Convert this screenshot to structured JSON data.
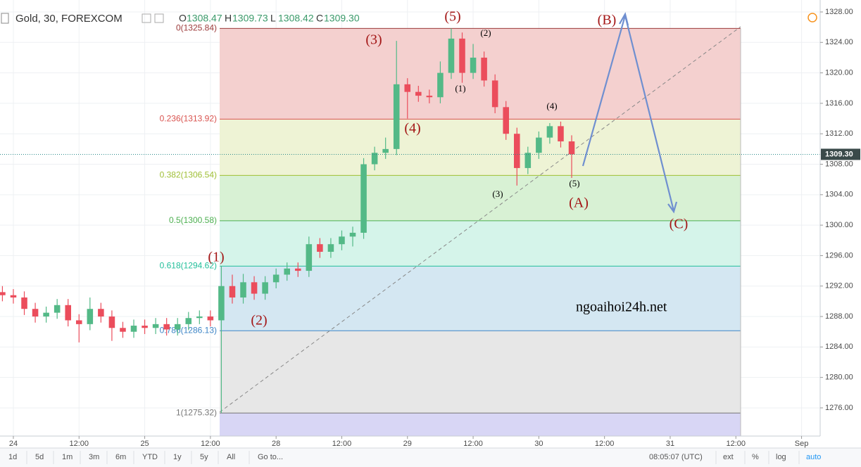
{
  "chart_data": {
    "type": "candlestick",
    "header": {
      "symbol": "Gold, 30, FOREXCOM",
      "ohlc": [
        {
          "key": "O",
          "value": "1308.47"
        },
        {
          "key": "H",
          "value": "1309.73"
        },
        {
          "key": "L",
          "value": "1308.42"
        },
        {
          "key": "C",
          "value": "1309.30"
        }
      ]
    },
    "x": [
      -2,
      0,
      2,
      4,
      6,
      8,
      10,
      12,
      14,
      16,
      18,
      20,
      22,
      24,
      26,
      28,
      30,
      32,
      34,
      36,
      38,
      40,
      42,
      44,
      46,
      48,
      50,
      52,
      54,
      56,
      58,
      60,
      62,
      64,
      66,
      68,
      70,
      72,
      74,
      76,
      78,
      80,
      82,
      84,
      86,
      88,
      90,
      92,
      94,
      96,
      98,
      100,
      102
    ],
    "open": [
      1291.2,
      1290.8,
      1290.5,
      1289,
      1288,
      1288.5,
      1289.5,
      1287.5,
      1287,
      1289,
      1288,
      1286.5,
      1286,
      1286.8,
      1286.5,
      1287,
      1286.3,
      1287,
      1287.8,
      1288,
      1287.5,
      1292,
      1290.5,
      1292.5,
      1291,
      1292.5,
      1293.5,
      1294.3,
      1294,
      1297.5,
      1296.5,
      1297.5,
      1298.5,
      1299,
      1308,
      1309.5,
      1310,
      1318.5,
      1317.5,
      1317,
      1316.8,
      1320,
      1324.5,
      1320,
      1322,
      1319,
      1315.5,
      1312,
      1307.5,
      1309.5,
      1311.5,
      1313,
      1311
    ],
    "high": [
      1292,
      1291.6,
      1291.3,
      1289.8,
      1289.3,
      1290.3,
      1290.3,
      1288.3,
      1290.5,
      1289.8,
      1288.8,
      1287.3,
      1287.6,
      1287.6,
      1287.8,
      1287.8,
      1287.8,
      1288.6,
      1288.8,
      1288.8,
      1294.62,
      1293.5,
      1293.6,
      1293.3,
      1293.3,
      1294.3,
      1295.1,
      1295.1,
      1298.5,
      1298.3,
      1298.3,
      1299.3,
      1299.8,
      1308.8,
      1310.3,
      1311.5,
      1324.2,
      1319.3,
      1318.3,
      1317.8,
      1321.5,
      1325.84,
      1325.3,
      1323.8,
      1322.8,
      1319.8,
      1316.3,
      1312.8,
      1310.3,
      1312.3,
      1313.4,
      1313.6,
      1311.8
    ],
    "low": [
      1290,
      1289.7,
      1288.2,
      1287.2,
      1287.2,
      1287.7,
      1286.7,
      1284.6,
      1286.2,
      1287.2,
      1284.8,
      1285.2,
      1285.2,
      1285.7,
      1285.7,
      1285.5,
      1285.5,
      1286.2,
      1287,
      1286.7,
      1275.32,
      1289.7,
      1289.7,
      1290.2,
      1290.2,
      1291.7,
      1292.7,
      1293.2,
      1293.2,
      1295.7,
      1295.7,
      1296.7,
      1297.2,
      1298.2,
      1307.2,
      1308.7,
      1309.2,
      1314,
      1316.2,
      1316,
      1316,
      1319.2,
      1318.7,
      1319.2,
      1318.2,
      1314.7,
      1311.2,
      1305.2,
      1306.7,
      1308.7,
      1310.7,
      1310.2,
      1306.2
    ],
    "close": [
      1290.8,
      1290.5,
      1289,
      1288,
      1288.5,
      1289.5,
      1287.5,
      1287,
      1289,
      1288,
      1286.5,
      1286,
      1286.8,
      1286.5,
      1287,
      1286.3,
      1287,
      1287.8,
      1288,
      1287.5,
      1292,
      1290.5,
      1292.5,
      1291,
      1292.5,
      1293.5,
      1294.3,
      1294,
      1297.5,
      1296.5,
      1297.5,
      1298.5,
      1299,
      1308,
      1309.5,
      1310,
      1318.5,
      1317.5,
      1317,
      1316.8,
      1320,
      1324.5,
      1320,
      1322,
      1319,
      1315.5,
      1312,
      1307.5,
      1309.5,
      1311.5,
      1313,
      1311,
      1309.3
    ],
    "up_color": "#53b987",
    "down_color": "#eb4d5c",
    "xlim": [
      -2.44,
      147.4
    ],
    "xticks": [
      {
        "value": 0,
        "label": "24"
      },
      {
        "value": 12,
        "label": "12:00"
      },
      {
        "value": 24,
        "label": "25"
      },
      {
        "value": 36,
        "label": "12:00"
      },
      {
        "value": 48,
        "label": "28"
      },
      {
        "value": 60,
        "label": "12:00"
      },
      {
        "value": 72,
        "label": "29"
      },
      {
        "value": 84,
        "label": "12:00"
      },
      {
        "value": 96,
        "label": "30"
      },
      {
        "value": 108,
        "label": "12:00"
      },
      {
        "value": 120,
        "label": "31"
      },
      {
        "value": 132,
        "label": "12:00"
      },
      {
        "value": 144,
        "label": "Sep"
      }
    ],
    "ylim": [
      1272.3,
      1329.57
    ],
    "yticks": [
      {
        "value": 1276,
        "label": "1276.00"
      },
      {
        "value": 1280,
        "label": "1280.00"
      },
      {
        "value": 1284,
        "label": "1284.00"
      },
      {
        "value": 1288,
        "label": "1288.00"
      },
      {
        "value": 1292,
        "label": "1292.00"
      },
      {
        "value": 1296,
        "label": "1296.00"
      },
      {
        "value": 1300,
        "label": "1300.00"
      },
      {
        "value": 1304,
        "label": "1304.00"
      },
      {
        "value": 1308,
        "label": "1308.00"
      },
      {
        "value": 1312,
        "label": "1312.00"
      },
      {
        "value": 1316,
        "label": "1316.00"
      },
      {
        "value": 1320,
        "label": "1320.00"
      },
      {
        "value": 1324,
        "label": "1324.00"
      },
      {
        "value": 1328,
        "label": "1328.00"
      }
    ],
    "grid": true,
    "last_price": {
      "value": 1309.3,
      "label": "1309.30"
    },
    "fib_levels": [
      {
        "label": "0(1325.84)",
        "price": 1325.84,
        "color": "#9c3b3b"
      },
      {
        "label": "0.236(1313.92)",
        "price": 1313.92,
        "color": "#d9534f",
        "fill": "#f4d0cf"
      },
      {
        "label": "0.382(1306.54)",
        "price": 1306.54,
        "color": "#9fbf35",
        "fill": "#eef3d5"
      },
      {
        "label": "0.5(1300.58)",
        "price": 1300.58,
        "color": "#4caf50",
        "fill": "#d8f1d4"
      },
      {
        "label": "0.618(1294.62)",
        "price": 1294.62,
        "color": "#22bf9a",
        "fill": "#d5f4ea"
      },
      {
        "label": "0.786(1286.13)",
        "price": 1286.13,
        "color": "#3d85c6",
        "fill": "#d4e7f2"
      },
      {
        "label": "1(1275.32)",
        "price": 1275.32,
        "color": "#777777",
        "fill": "#e7e7e7"
      }
    ],
    "fill_below": "#d8d6f5",
    "annotations": [
      {
        "text": "(5)",
        "style": "major"
      },
      {
        "text": "(3)",
        "style": "major"
      },
      {
        "text": "(4)",
        "style": "major"
      },
      {
        "text": "(1)",
        "style": "major"
      },
      {
        "text": "(2)",
        "style": "major"
      },
      {
        "text": "(B)",
        "style": "major"
      },
      {
        "text": "(A)",
        "style": "major"
      },
      {
        "text": "(C)",
        "style": "major"
      },
      {
        "text": "(2)",
        "style": "minor"
      },
      {
        "text": "(1)",
        "style": "minor"
      },
      {
        "text": "(4)",
        "style": "minor"
      },
      {
        "text": "(3)",
        "style": "minor"
      },
      {
        "text": "(5)",
        "style": "minor"
      }
    ],
    "watermark": "ngoaihoi24h.net",
    "toolbar": {
      "ranges": [
        "1d",
        "5d",
        "1m",
        "3m",
        "6m",
        "YTD",
        "1y",
        "5y",
        "All"
      ],
      "goto": "Go to...",
      "clock": "08:05:07 (UTC)",
      "options": [
        "ext",
        "%",
        "log",
        "auto"
      ]
    }
  }
}
